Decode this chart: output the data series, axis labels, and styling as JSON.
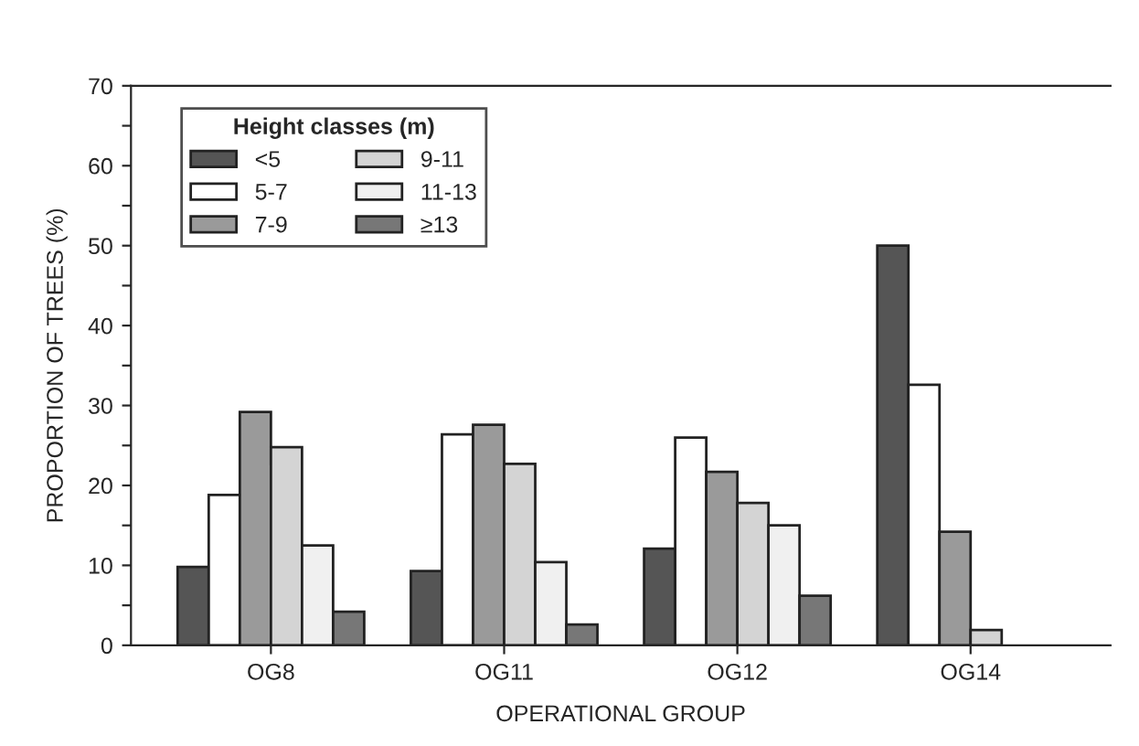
{
  "chart_data": {
    "type": "bar",
    "xlabel": "OPERATIONAL GROUP",
    "ylabel": "PROPORTION OF TREES (%)",
    "legend_title": "Height classes (m)",
    "legend": "top left",
    "categories": [
      "OG8",
      "OG11",
      "OG12",
      "OG14"
    ],
    "series": [
      {
        "name": "<5",
        "color": "#555555",
        "values": [
          9.8,
          9.3,
          12.1,
          50
        ]
      },
      {
        "name": "5-7",
        "color": "#ffffff",
        "values": [
          18.8,
          26.4,
          26.0,
          32.6
        ]
      },
      {
        "name": "7-9",
        "color": "#9a9a9a",
        "values": [
          29.2,
          27.6,
          21.7,
          14.2
        ]
      },
      {
        "name": "9-11",
        "color": "#d4d4d4",
        "values": [
          24.8,
          22.7,
          17.8,
          1.9
        ]
      },
      {
        "name": "11-13",
        "color": "#f0f0f0",
        "values": [
          12.5,
          10.4,
          15.0,
          null
        ]
      },
      {
        "name": "≥13",
        "color": "#777777",
        "values": [
          4.2,
          2.6,
          6.2,
          null
        ]
      }
    ],
    "ylim": [
      0,
      70
    ],
    "yticks": [
      0,
      {
        "value": 5,
        "label": null
      },
      10,
      {
        "value": 15,
        "label": null
      },
      20,
      {
        "value": 25,
        "label": null
      },
      30,
      {
        "value": 35,
        "label": null
      },
      40,
      {
        "value": 45,
        "label": null
      },
      50,
      {
        "value": 55,
        "label": null
      },
      60,
      {
        "value": 65,
        "label": null
      },
      70
    ],
    "grid": false
  }
}
